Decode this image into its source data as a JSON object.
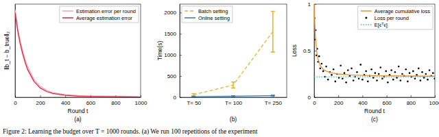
{
  "caption": "Figure 2: Learning the budget over T = 1000 rounds. (a) We run 100 repetitions of the experiment",
  "chart_data": [
    {
      "type": "line",
      "subtitle": "(a)",
      "x_label": "Round t",
      "y_label": "‖b_t − b_true‖₂",
      "x": [
        0,
        10,
        20,
        40,
        60,
        80,
        100,
        150,
        200,
        250,
        300,
        400,
        500,
        600,
        800,
        1000
      ],
      "xlim": [
        0,
        1000
      ],
      "xticks": [
        0,
        200,
        400,
        600,
        800,
        1000
      ],
      "ylim": [
        0,
        3.2
      ],
      "tick_labels": "x",
      "legend": "top-right",
      "series": [
        {
          "name": "Estimation error per round",
          "color": "#f4a3b3",
          "values": [
            3.0,
            2.75,
            2.4,
            1.95,
            1.6,
            1.3,
            1.05,
            0.62,
            0.38,
            0.24,
            0.16,
            0.09,
            0.06,
            0.04,
            0.03,
            0.02
          ]
        },
        {
          "name": "Average estimation error",
          "color": "#e8203a",
          "values": [
            2.9,
            2.6,
            2.3,
            1.85,
            1.5,
            1.2,
            0.95,
            0.55,
            0.32,
            0.2,
            0.13,
            0.07,
            0.04,
            0.03,
            0.02,
            0.01
          ]
        }
      ]
    },
    {
      "type": "line",
      "subtitle": "(b)",
      "y_label": "Time(s)",
      "categories": [
        "T= 50",
        "T= 100",
        "T= 250"
      ],
      "ylim": [
        0,
        2200
      ],
      "yticks": [
        0,
        500,
        1000,
        1500,
        2000
      ],
      "legend": "top-left",
      "series": [
        {
          "name": "Batch setting",
          "color": "#f0b323",
          "line_style": "dashed",
          "values": [
            60,
            290,
            1550
          ],
          "errors": [
            25,
            70,
            480
          ]
        },
        {
          "name": "Online setting",
          "color": "#2b7bba",
          "line_style": "solid",
          "values": [
            15,
            25,
            40
          ],
          "errors": [
            5,
            6,
            8
          ]
        }
      ]
    },
    {
      "type": "scatter",
      "subtitle": "(c)",
      "x_label": "Round t",
      "y_label": "Loss",
      "xlim": [
        0,
        1000
      ],
      "xticks": [
        0,
        200,
        400,
        600,
        800,
        1000
      ],
      "ylim": [
        0,
        1
      ],
      "yticks": [
        0,
        0.5,
        1
      ],
      "legend": "top-right",
      "series": [
        {
          "name": "Average cumulative loss",
          "type": "line",
          "color": "#f28e2b",
          "line_style": "solid",
          "x": [
            1,
            5,
            10,
            20,
            30,
            50,
            75,
            100,
            150,
            200,
            300,
            400,
            600,
            800,
            1000
          ],
          "values": [
            1.0,
            0.8,
            0.65,
            0.5,
            0.42,
            0.34,
            0.3,
            0.28,
            0.26,
            0.25,
            0.24,
            0.235,
            0.23,
            0.228,
            0.226
          ]
        },
        {
          "name": "Loss per round",
          "type": "scatter",
          "color": "#000000",
          "marker": "dot",
          "x": [
            3,
            8,
            12,
            18,
            25,
            33,
            41,
            50,
            62,
            75,
            88,
            100,
            115,
            130,
            145,
            160,
            175,
            190,
            205,
            220,
            235,
            250,
            265,
            280,
            295,
            310,
            325,
            340,
            355,
            370,
            385,
            400,
            415,
            430,
            445,
            460,
            475,
            490,
            505,
            520,
            535,
            550,
            565,
            580,
            595,
            610,
            625,
            640,
            655,
            670,
            685,
            700,
            715,
            730,
            745,
            760,
            775,
            790,
            805,
            820,
            835,
            850,
            865,
            880,
            895,
            910,
            925,
            940,
            955,
            970,
            985,
            998
          ],
          "values": [
            0.85,
            0.62,
            0.72,
            0.45,
            0.52,
            0.38,
            0.44,
            0.31,
            0.36,
            0.28,
            0.22,
            0.33,
            0.19,
            0.27,
            0.24,
            0.3,
            0.17,
            0.25,
            0.21,
            0.34,
            0.2,
            0.26,
            0.16,
            0.29,
            0.23,
            0.31,
            0.18,
            0.22,
            0.27,
            0.2,
            0.35,
            0.19,
            0.24,
            0.28,
            0.17,
            0.23,
            0.3,
            0.21,
            0.26,
            0.18,
            0.25,
            0.32,
            0.2,
            0.22,
            0.28,
            0.16,
            0.24,
            0.29,
            0.19,
            0.27,
            0.21,
            0.33,
            0.18,
            0.25,
            0.23,
            0.3,
            0.17,
            0.26,
            0.22,
            0.28,
            0.2,
            0.24,
            0.31,
            0.18,
            0.27,
            0.21,
            0.25,
            0.19,
            0.29,
            0.23,
            0.26,
            0.2
          ]
        },
        {
          "name": "E[ϵᵀϵ]",
          "type": "line",
          "color": "#2ec4c4",
          "line_style": "dotted",
          "x": [
            0,
            1000
          ],
          "values": [
            0.22,
            0.22
          ]
        }
      ]
    }
  ]
}
